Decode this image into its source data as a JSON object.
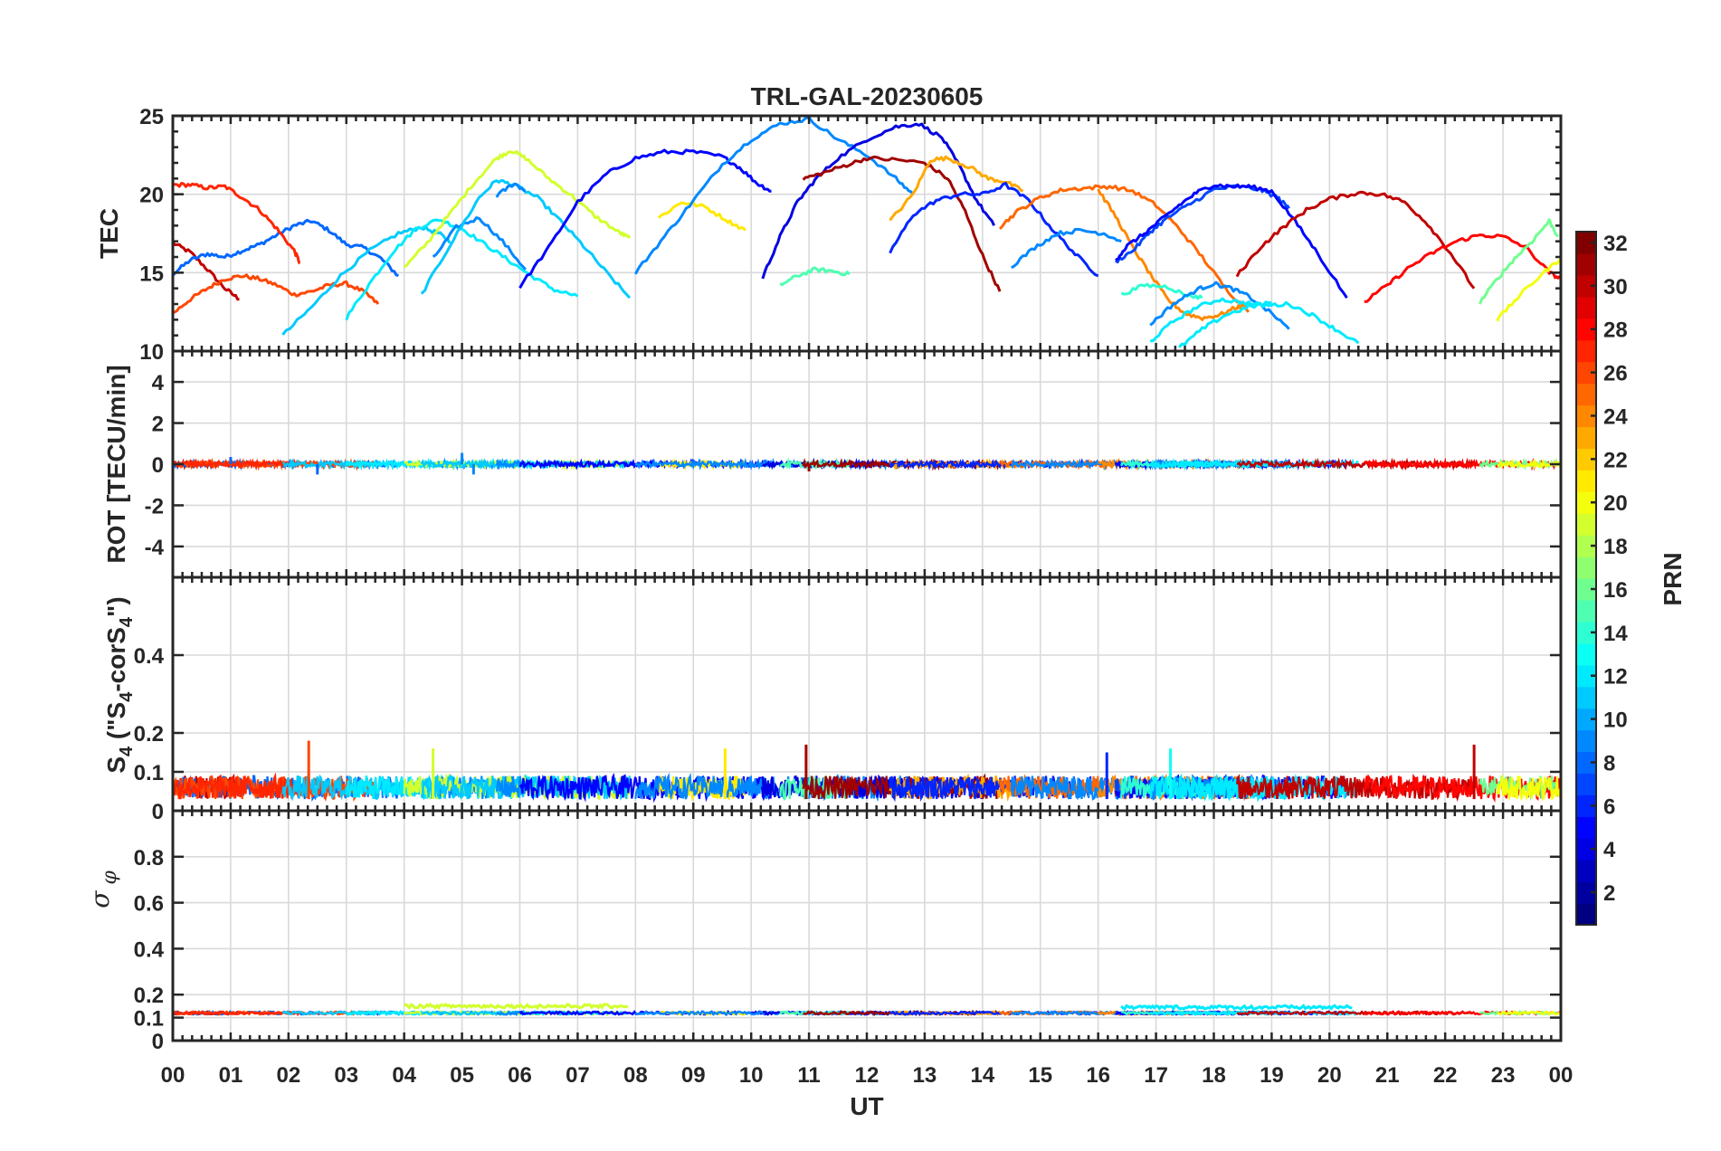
{
  "chart_data": {
    "type": "line",
    "title": "TRL-GAL-20230605",
    "xlabel": "UT",
    "x_tick_labels": [
      "00",
      "01",
      "02",
      "03",
      "04",
      "05",
      "06",
      "07",
      "08",
      "09",
      "10",
      "11",
      "12",
      "13",
      "14",
      "15",
      "16",
      "17",
      "18",
      "19",
      "20",
      "21",
      "22",
      "23",
      "00"
    ],
    "xlim_hours": [
      0,
      24
    ],
    "grid": true,
    "colorbar": {
      "label": "PRN",
      "colormap": "jet",
      "range": [
        1,
        32
      ],
      "tick_labels": [
        "2",
        "4",
        "6",
        "8",
        "10",
        "12",
        "14",
        "16",
        "18",
        "20",
        "22",
        "24",
        "26",
        "28",
        "30",
        "32"
      ]
    },
    "panels": [
      {
        "id": "tec",
        "ylabel": "TEC",
        "ylim": [
          10,
          25
        ],
        "y_tick_labels": [
          "15",
          "20",
          "25"
        ],
        "series": [
          {
            "prn": 30,
            "x": [
              0.0,
              0.3,
              0.6,
              0.9,
              1.15
            ],
            "y": [
              16.9,
              16.3,
              15.2,
              14.0,
              13.3
            ]
          },
          {
            "prn": 8,
            "x": [
              0.0,
              0.3,
              0.6,
              0.9,
              1.2,
              1.5,
              1.8,
              2.1,
              2.4,
              2.7,
              3.0,
              3.3,
              3.6,
              3.9
            ],
            "y": [
              14.9,
              15.8,
              16.2,
              16.0,
              16.4,
              16.8,
              17.4,
              18.0,
              18.3,
              17.7,
              16.8,
              16.6,
              15.9,
              14.8
            ]
          },
          {
            "prn": 26,
            "x": [
              0.0,
              0.3,
              0.6,
              0.9,
              1.2,
              1.5,
              1.8,
              2.1,
              2.4,
              2.7,
              3.0,
              3.3,
              3.55
            ],
            "y": [
              12.4,
              13.3,
              14.0,
              14.6,
              14.8,
              14.6,
              14.2,
              13.6,
              13.8,
              14.2,
              14.3,
              13.8,
              13.0
            ]
          },
          {
            "prn": 27,
            "x": [
              0.0,
              0.3,
              0.6,
              0.9,
              1.2,
              1.5,
              1.8,
              2.1,
              2.2
            ],
            "y": [
              20.6,
              20.6,
              20.4,
              20.5,
              19.8,
              19.0,
              17.8,
              16.4,
              15.6
            ]
          },
          {
            "prn": 11,
            "x": [
              1.9,
              2.4,
              2.9,
              3.4,
              3.9,
              4.3,
              4.6,
              4.8
            ],
            "y": [
              11.0,
              12.8,
              14.8,
              16.4,
              17.5,
              17.9,
              17.5,
              17.0
            ]
          },
          {
            "prn": 12,
            "x": [
              3.0,
              3.4,
              3.8,
              4.2,
              4.6,
              5.0,
              5.4,
              5.8,
              6.2,
              6.6,
              7.0
            ],
            "y": [
              12.1,
              14.3,
              16.3,
              17.8,
              18.4,
              17.8,
              16.8,
              15.8,
              14.8,
              13.9,
              13.5
            ]
          },
          {
            "prn": 9,
            "x": [
              4.5,
              4.9,
              5.3,
              5.7,
              6.1
            ],
            "y": [
              15.9,
              17.9,
              18.5,
              17.0,
              15.2
            ]
          },
          {
            "prn": 19,
            "x": [
              4.0,
              4.4,
              4.8,
              5.2,
              5.6,
              5.85,
              6.1,
              6.5,
              6.9,
              7.3,
              7.7,
              7.9
            ],
            "y": [
              15.3,
              16.9,
              18.8,
              20.7,
              22.3,
              22.8,
              22.3,
              21.0,
              19.9,
              18.6,
              17.6,
              17.2
            ]
          },
          {
            "prn": 11,
            "x": [
              4.3,
              4.8,
              5.3,
              5.6,
              5.9,
              6.3,
              6.7,
              7.1,
              7.5,
              7.9
            ],
            "y": [
              13.6,
              16.8,
              19.8,
              20.9,
              20.6,
              19.8,
              18.3,
              16.7,
              15.0,
              13.4
            ]
          },
          {
            "prn": 9,
            "x": [
              5.6,
              5.9,
              6.1
            ],
            "y": [
              19.9,
              20.7,
              20.2
            ]
          },
          {
            "prn": 5,
            "x": [
              6.0,
              6.5,
              7.0,
              7.5,
              8.0,
              8.5,
              9.0,
              9.5,
              9.8,
              10.1,
              10.35
            ],
            "y": [
              14.1,
              16.6,
              19.5,
              21.3,
              22.3,
              22.7,
              22.7,
              22.4,
              21.7,
              20.7,
              20.2
            ]
          },
          {
            "prn": 21,
            "x": [
              8.4,
              8.8,
              9.2,
              9.6,
              9.9
            ],
            "y": [
              18.5,
              19.5,
              19.2,
              18.3,
              17.7
            ]
          },
          {
            "prn": 9,
            "x": [
              8.0,
              8.5,
              9.0,
              9.5,
              10.0,
              10.5,
              11.0,
              11.5,
              12.0,
              12.5,
              12.8
            ],
            "y": [
              15.0,
              17.3,
              19.6,
              21.9,
              23.5,
              24.5,
              24.8,
              23.5,
              22.5,
              21.0,
              20.0
            ]
          },
          {
            "prn": 4,
            "x": [
              10.2,
              10.5,
              10.8,
              11.1,
              11.5,
              12.0,
              12.5,
              12.9,
              13.3,
              13.6,
              13.9,
              14.2
            ],
            "y": [
              14.7,
              17.3,
              19.5,
              20.9,
              22.3,
              23.5,
              24.3,
              24.5,
              23.6,
              21.8,
              19.6,
              18.0
            ]
          },
          {
            "prn": 15,
            "x": [
              10.5,
              10.8,
              11.1,
              11.4,
              11.7
            ],
            "y": [
              14.2,
              14.8,
              15.2,
              15.1,
              14.9
            ]
          },
          {
            "prn": 31,
            "x": [
              10.9,
              11.2,
              11.6,
              12.0,
              12.5,
              13.0,
              13.4,
              13.7,
              14.0,
              14.3
            ],
            "y": [
              21.0,
              21.3,
              21.8,
              22.3,
              22.2,
              22.0,
              21.0,
              18.9,
              16.1,
              13.8
            ]
          },
          {
            "prn": 23,
            "x": [
              12.4,
              12.8,
              13.1,
              13.4,
              13.8,
              14.1,
              14.4,
              14.7
            ],
            "y": [
              18.3,
              20.0,
              22.2,
              22.3,
              21.7,
              21.0,
              20.8,
              20.2
            ]
          },
          {
            "prn": 6,
            "x": [
              12.4,
              12.8,
              13.2,
              13.6,
              14.0,
              14.4,
              14.8,
              15.2,
              15.6,
              16.0
            ],
            "y": [
              16.3,
              18.7,
              19.6,
              20.0,
              20.0,
              20.6,
              19.6,
              17.8,
              16.2,
              14.8
            ]
          },
          {
            "prn": 25,
            "x": [
              14.3,
              14.6,
              15.0,
              15.4,
              15.8,
              16.2,
              16.6,
              17.0,
              17.4,
              17.8,
              18.2,
              18.6
            ],
            "y": [
              17.9,
              18.9,
              19.8,
              20.3,
              20.4,
              20.5,
              20.2,
              19.3,
              17.8,
              16.0,
              14.0,
              12.5
            ]
          },
          {
            "prn": 9,
            "x": [
              14.5,
              14.9,
              15.3,
              15.7,
              16.1,
              16.4
            ],
            "y": [
              15.4,
              16.6,
              17.5,
              17.7,
              17.5,
              17.0
            ]
          },
          {
            "prn": 24,
            "x": [
              16.0,
              16.3,
              16.6,
              16.9,
              17.2,
              17.5,
              17.8,
              18.1,
              18.4,
              18.6
            ],
            "y": [
              20.3,
              18.6,
              16.6,
              14.9,
              13.3,
              12.4,
              12.1,
              12.3,
              12.8,
              13.0
            ]
          },
          {
            "prn": 7,
            "x": [
              16.3,
              16.6,
              16.9,
              17.2,
              17.6,
              18.0,
              18.4,
              18.8,
              19.1,
              19.3
            ],
            "y": [
              15.7,
              16.4,
              17.6,
              18.5,
              19.4,
              20.3,
              20.5,
              20.3,
              19.8,
              19.1
            ]
          },
          {
            "prn": 5,
            "x": [
              16.3,
              16.5,
              16.8,
              17.1,
              17.4,
              17.7,
              18.0,
              18.3,
              18.6,
              19.0,
              19.4,
              19.8,
              20.3
            ],
            "y": [
              15.8,
              16.7,
              17.5,
              18.4,
              19.3,
              20.1,
              20.6,
              20.5,
              20.5,
              20.2,
              18.3,
              16.2,
              13.4
            ]
          },
          {
            "prn": 14,
            "x": [
              16.4,
              16.8,
              17.2,
              17.5,
              17.8
            ],
            "y": [
              13.6,
              14.2,
              14.1,
              13.6,
              13.4
            ]
          },
          {
            "prn": 9,
            "x": [
              16.9,
              17.3,
              17.7,
              18.0,
              18.3,
              18.6,
              19.0,
              19.3
            ],
            "y": [
              11.7,
              13.0,
              13.9,
              14.3,
              14.0,
              13.5,
              12.4,
              11.4
            ]
          },
          {
            "prn": 12,
            "x": [
              16.9,
              17.3,
              17.7,
              18.1,
              18.5,
              18.9,
              19.3,
              19.7,
              20.1,
              20.5
            ],
            "y": [
              10.6,
              11.9,
              12.8,
              13.3,
              13.1,
              12.9,
              13.0,
              12.3,
              11.4,
              10.5
            ]
          },
          {
            "prn": 12,
            "x": [
              17.4,
              17.8,
              18.2,
              18.6,
              19.0
            ],
            "y": [
              10.2,
              11.4,
              12.3,
              12.8,
              13.1
            ]
          },
          {
            "prn": 30,
            "x": [
              18.4,
              18.8,
              19.2,
              19.6,
              20.0,
              20.5,
              20.9,
              21.3,
              21.7,
              22.1,
              22.5
            ],
            "y": [
              14.8,
              16.6,
              17.9,
              19.0,
              19.7,
              20.1,
              20.0,
              19.5,
              18.1,
              16.2,
              14.0
            ]
          },
          {
            "prn": 28,
            "x": [
              20.6,
              21.0,
              21.4,
              21.8,
              22.2,
              22.6,
              23.0,
              23.4,
              23.8,
              24.0
            ],
            "y": [
              13.1,
              14.2,
              15.4,
              16.3,
              17.0,
              17.4,
              17.3,
              16.6,
              15.0,
              14.6
            ]
          },
          {
            "prn": 16,
            "x": [
              22.6,
              22.9,
              23.2,
              23.5,
              23.8,
              23.95
            ],
            "y": [
              13.1,
              14.6,
              15.9,
              17.0,
              18.3,
              17.3
            ]
          },
          {
            "prn": 20,
            "x": [
              22.9,
              23.3,
              23.7,
              24.0
            ],
            "y": [
              12.0,
              13.6,
              15.0,
              15.9
            ]
          }
        ]
      },
      {
        "id": "rot",
        "ylabel": "ROT [TECU/min]",
        "ylim": [
          -5.5,
          5.5
        ],
        "y_tick_labels": [
          "-4",
          "-2",
          "0",
          "2",
          "4"
        ],
        "baseline": 0,
        "spikes": [
          {
            "prn": 8,
            "x": 1.0,
            "y": 0.35
          },
          {
            "prn": 8,
            "x": 2.5,
            "y": -0.5
          },
          {
            "prn": 9,
            "x": 5.0,
            "y": 0.55
          },
          {
            "prn": 9,
            "x": 5.2,
            "y": -0.5
          },
          {
            "prn": 31,
            "x": 11.0,
            "y": -0.35
          },
          {
            "prn": 23,
            "x": 12.5,
            "y": -0.25
          }
        ]
      },
      {
        "id": "s4",
        "ylabel": "S4 (\"S4-corS4\")",
        "ylabel_main": "S",
        "ylabel_sub": "4",
        "ylabel_mid": " (\"S",
        "ylabel_sub2": "4",
        "ylabel_end": "-corS",
        "ylabel_sub3": "4",
        "ylabel_close": "\")",
        "ylim": [
          0,
          0.6
        ],
        "y_tick_labels": [
          "0",
          "0.1",
          "0.2",
          "0.4"
        ],
        "noise_mean": 0.05,
        "spikes": [
          {
            "prn": 26,
            "x": 2.35,
            "y": 0.18
          },
          {
            "prn": 19,
            "x": 4.5,
            "y": 0.16
          },
          {
            "prn": 21,
            "x": 9.55,
            "y": 0.16
          },
          {
            "prn": 31,
            "x": 10.95,
            "y": 0.17
          },
          {
            "prn": 6,
            "x": 16.15,
            "y": 0.15
          },
          {
            "prn": 13,
            "x": 17.25,
            "y": 0.16
          },
          {
            "prn": 30,
            "x": 22.5,
            "y": 0.17
          }
        ]
      },
      {
        "id": "sigma_phi",
        "ylabel": "σφ",
        "ylabel_main": "σ",
        "ylabel_sub": "φ",
        "ylim": [
          0,
          1
        ],
        "y_tick_labels": [
          "0",
          "0.1",
          "0.2",
          "0.4",
          "0.6",
          "0.8"
        ],
        "baseline": 0.12,
        "elevated": [
          {
            "prn": 19,
            "x0": 4.0,
            "x1": 7.9,
            "y": 0.15
          },
          {
            "prn": 12,
            "x0": 16.4,
            "x1": 20.4,
            "y": 0.145
          }
        ]
      }
    ]
  }
}
